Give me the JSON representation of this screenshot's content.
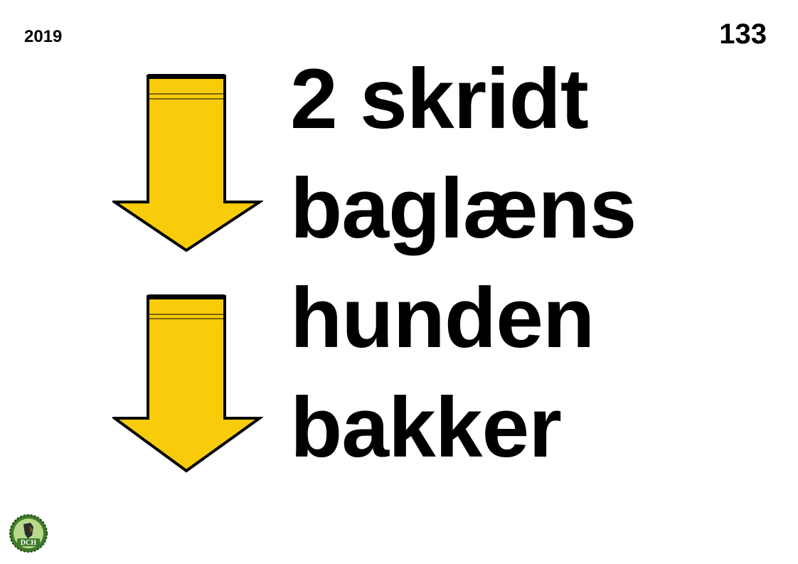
{
  "header": {
    "year": "2019",
    "sign_number": "133"
  },
  "instruction": {
    "lines": [
      "2 skridt",
      "baglæns",
      "hunden",
      "bakker"
    ]
  },
  "arrows": [
    {
      "icon": "arrow-down-icon",
      "color": "#F9CC0B"
    },
    {
      "icon": "arrow-down-icon",
      "color": "#F9CC0B"
    }
  ],
  "logo": {
    "icon": "dch-logo-icon",
    "text": "DCH"
  },
  "colors": {
    "arrow_fill": "#F9CC0B",
    "outline": "#000000",
    "logo_green": "#3F7A2A",
    "logo_light": "#B8D98A"
  }
}
